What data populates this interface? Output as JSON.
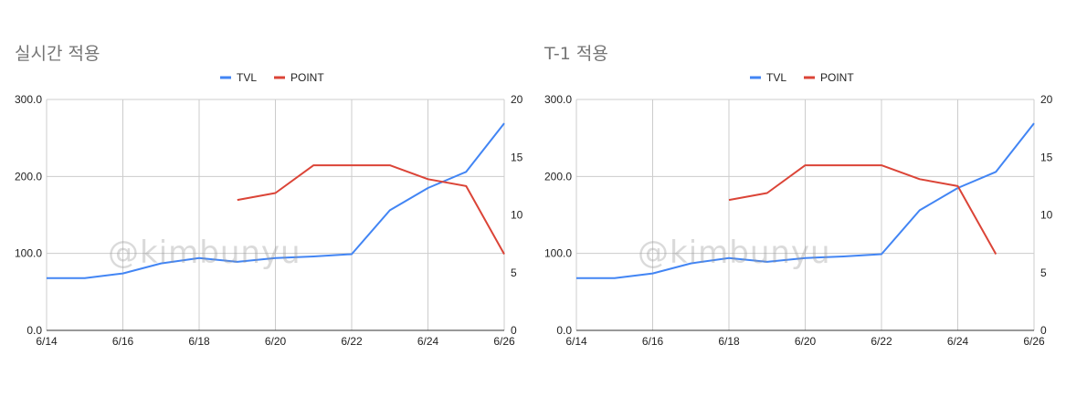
{
  "watermark": "@kimbunyu",
  "chart_data": [
    {
      "type": "line",
      "title": "실시간 적용",
      "x": [
        "6/14",
        "6/15",
        "6/16",
        "6/17",
        "6/18",
        "6/19",
        "6/20",
        "6/21",
        "6/22",
        "6/23",
        "6/24",
        "6/25",
        "6/26"
      ],
      "x_tick_labels": [
        "6/14",
        "6/16",
        "6/18",
        "6/20",
        "6/22",
        "6/24",
        "6/26"
      ],
      "y_left_ticks": [
        "0.0",
        "100.0",
        "200.0",
        "300.0"
      ],
      "y_left_range": [
        0,
        300
      ],
      "y_right_ticks": [
        "0",
        "5",
        "10",
        "15",
        "20"
      ],
      "y_right_range": [
        0,
        20
      ],
      "legend_position": "top-center",
      "grid": true,
      "series": [
        {
          "name": "TVL",
          "axis": "left",
          "color": "#4285f4",
          "values": [
            68,
            68,
            74,
            87,
            94,
            89,
            94,
            96,
            99,
            156,
            185,
            206,
            269
          ]
        },
        {
          "name": "POINT",
          "axis": "right",
          "color": "#db4437",
          "values": [
            null,
            null,
            null,
            null,
            null,
            11.3,
            11.9,
            14.3,
            14.3,
            14.3,
            13.1,
            12.5,
            6.6
          ]
        }
      ]
    },
    {
      "type": "line",
      "title": "T-1 적용",
      "x": [
        "6/14",
        "6/15",
        "6/16",
        "6/17",
        "6/18",
        "6/19",
        "6/20",
        "6/21",
        "6/22",
        "6/23",
        "6/24",
        "6/25",
        "6/26"
      ],
      "x_tick_labels": [
        "6/14",
        "6/16",
        "6/18",
        "6/20",
        "6/22",
        "6/24",
        "6/26"
      ],
      "y_left_ticks": [
        "0.0",
        "100.0",
        "200.0",
        "300.0"
      ],
      "y_left_range": [
        0,
        300
      ],
      "y_right_ticks": [
        "0",
        "5",
        "10",
        "15",
        "20"
      ],
      "y_right_range": [
        0,
        20
      ],
      "legend_position": "top-center",
      "grid": true,
      "series": [
        {
          "name": "TVL",
          "axis": "left",
          "color": "#4285f4",
          "values": [
            68,
            68,
            74,
            87,
            94,
            89,
            94,
            96,
            99,
            156,
            185,
            206,
            269
          ]
        },
        {
          "name": "POINT",
          "axis": "right",
          "color": "#db4437",
          "values": [
            null,
            null,
            null,
            null,
            11.3,
            11.9,
            14.3,
            14.3,
            14.3,
            13.1,
            12.5,
            6.6,
            null
          ]
        }
      ]
    }
  ]
}
